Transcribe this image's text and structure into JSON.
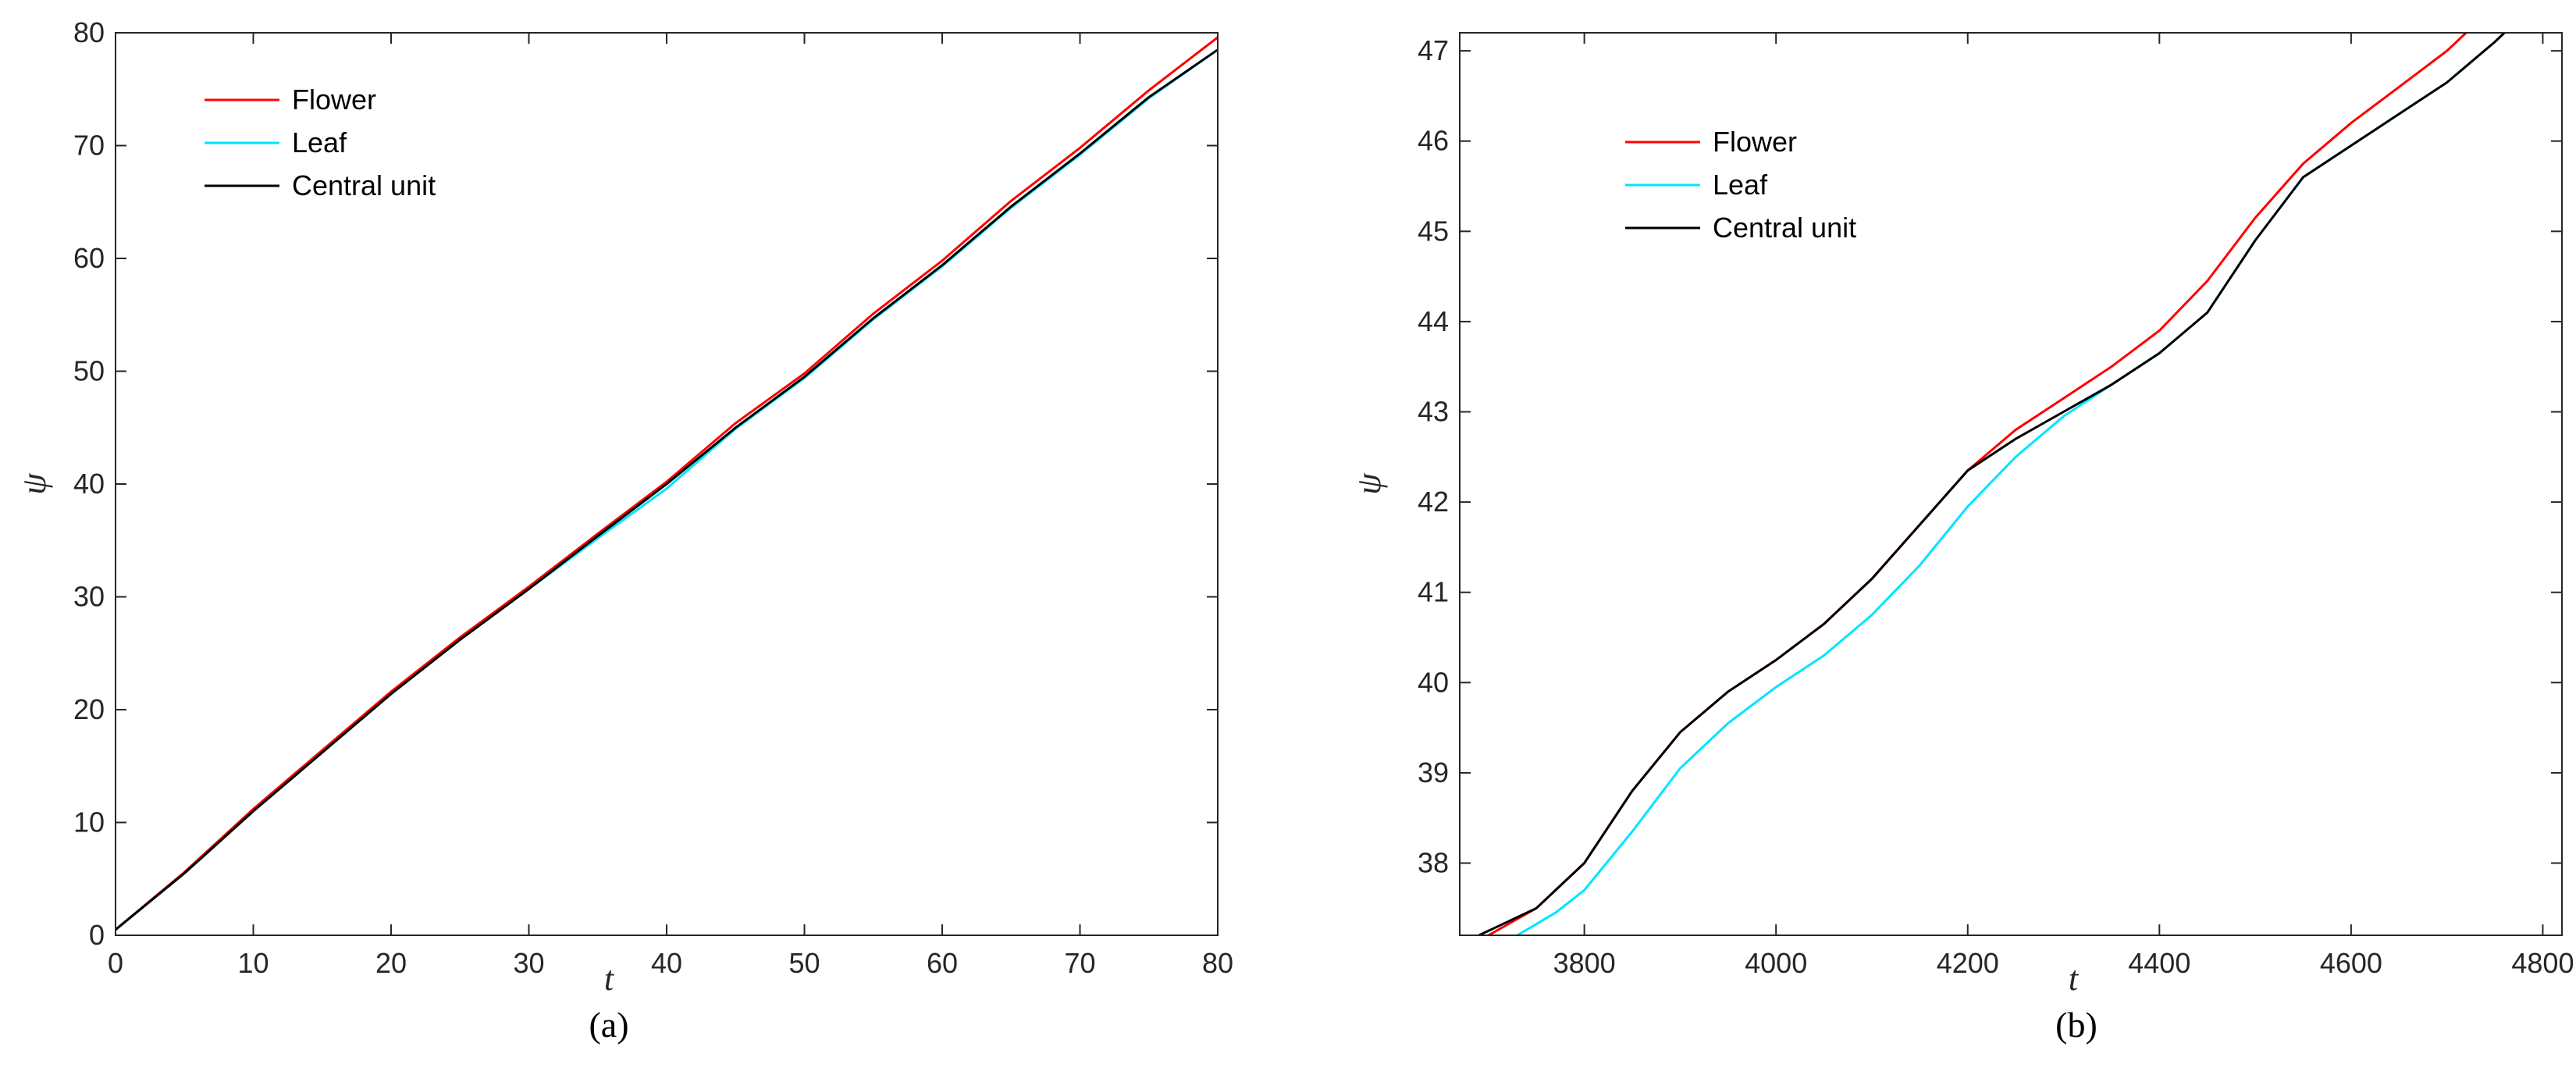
{
  "chart_data": [
    {
      "type": "line",
      "caption": "(a)",
      "xlabel": "t",
      "ylabel": "ψ",
      "xlim": [
        0,
        80
      ],
      "ylim": [
        0,
        80
      ],
      "xticks": [
        0,
        10,
        20,
        30,
        40,
        50,
        60,
        70,
        80
      ],
      "yticks": [
        0,
        10,
        20,
        30,
        40,
        50,
        60,
        70,
        80
      ],
      "grid": false,
      "legend_position": "top-left",
      "series": [
        {
          "name": "Flower",
          "color": "#ff0000",
          "x": [
            0,
            5,
            10,
            15,
            20,
            25,
            30,
            35,
            40,
            45,
            50,
            55,
            60,
            65,
            70,
            75,
            80
          ],
          "y": [
            0.5,
            5.6,
            11.2,
            16.4,
            21.6,
            26.4,
            30.9,
            35.6,
            40.2,
            45.4,
            49.8,
            55.1,
            59.8,
            65.1,
            69.8,
            74.9,
            79.6
          ]
        },
        {
          "name": "Leaf",
          "color": "#00e5ff",
          "x": [
            0,
            5,
            10,
            15,
            20,
            25,
            30,
            35,
            40,
            45,
            50,
            55,
            60,
            65,
            70,
            75,
            80
          ],
          "y": [
            0.5,
            5.5,
            11.0,
            16.2,
            21.4,
            26.2,
            30.7,
            35.2,
            39.6,
            44.9,
            49.4,
            54.6,
            59.3,
            64.5,
            69.2,
            74.2,
            78.5
          ]
        },
        {
          "name": "Central unit",
          "color": "#000000",
          "x": [
            0,
            5,
            10,
            15,
            20,
            25,
            30,
            35,
            40,
            45,
            50,
            55,
            60,
            65,
            70,
            75,
            80
          ],
          "y": [
            0.5,
            5.5,
            11.0,
            16.2,
            21.4,
            26.2,
            30.7,
            35.4,
            40.0,
            45.0,
            49.5,
            54.7,
            59.4,
            64.6,
            69.3,
            74.3,
            78.5
          ]
        }
      ]
    },
    {
      "type": "line",
      "caption": "(b)",
      "xlabel": "t",
      "ylabel": "ψ",
      "xlim": [
        3670,
        4820
      ],
      "ylim": [
        37.2,
        47.2
      ],
      "xticks": [
        3800,
        4000,
        4200,
        4400,
        4600,
        4800
      ],
      "yticks": [
        38,
        39,
        40,
        41,
        42,
        43,
        44,
        45,
        46,
        47
      ],
      "grid": false,
      "legend_position": "top-left",
      "series": [
        {
          "name": "Flower",
          "color": "#ff0000",
          "x": [
            3700,
            3750,
            3800,
            3850,
            3900,
            3950,
            4000,
            4050,
            4100,
            4150,
            4200,
            4250,
            4300,
            4350,
            4400,
            4450,
            4500,
            4550,
            4600,
            4650,
            4700,
            4720
          ],
          "y": [
            37.2,
            37.5,
            38.0,
            38.8,
            39.45,
            39.9,
            40.25,
            40.65,
            41.15,
            41.75,
            42.35,
            42.8,
            43.15,
            43.5,
            43.9,
            44.45,
            45.15,
            45.75,
            46.2,
            46.6,
            47.0,
            47.2
          ]
        },
        {
          "name": "Leaf",
          "color": "#00e5ff",
          "x": [
            3730,
            3770,
            3800,
            3850,
            3900,
            3950,
            4000,
            4050,
            4100,
            4150,
            4200,
            4250,
            4300,
            4350,
            4400,
            4450,
            4500,
            4550,
            4600,
            4650,
            4700,
            4750,
            4760
          ],
          "y": [
            37.2,
            37.45,
            37.7,
            38.35,
            39.05,
            39.55,
            39.95,
            40.3,
            40.75,
            41.3,
            41.95,
            42.5,
            42.95,
            43.3,
            43.65,
            44.1,
            44.9,
            45.6,
            45.95,
            46.3,
            46.65,
            47.1,
            47.2
          ]
        },
        {
          "name": "Central unit",
          "color": "#000000",
          "x": [
            3690,
            3750,
            3800,
            3850,
            3900,
            3950,
            4000,
            4050,
            4100,
            4150,
            4200,
            4250,
            4300,
            4350,
            4400,
            4450,
            4500,
            4550,
            4600,
            4650,
            4700,
            4750,
            4760
          ],
          "y": [
            37.2,
            37.5,
            38.0,
            38.8,
            39.45,
            39.9,
            40.25,
            40.65,
            41.15,
            41.75,
            42.35,
            42.7,
            43.0,
            43.3,
            43.65,
            44.1,
            44.9,
            45.6,
            45.95,
            46.3,
            46.65,
            47.1,
            47.2
          ]
        }
      ]
    }
  ]
}
